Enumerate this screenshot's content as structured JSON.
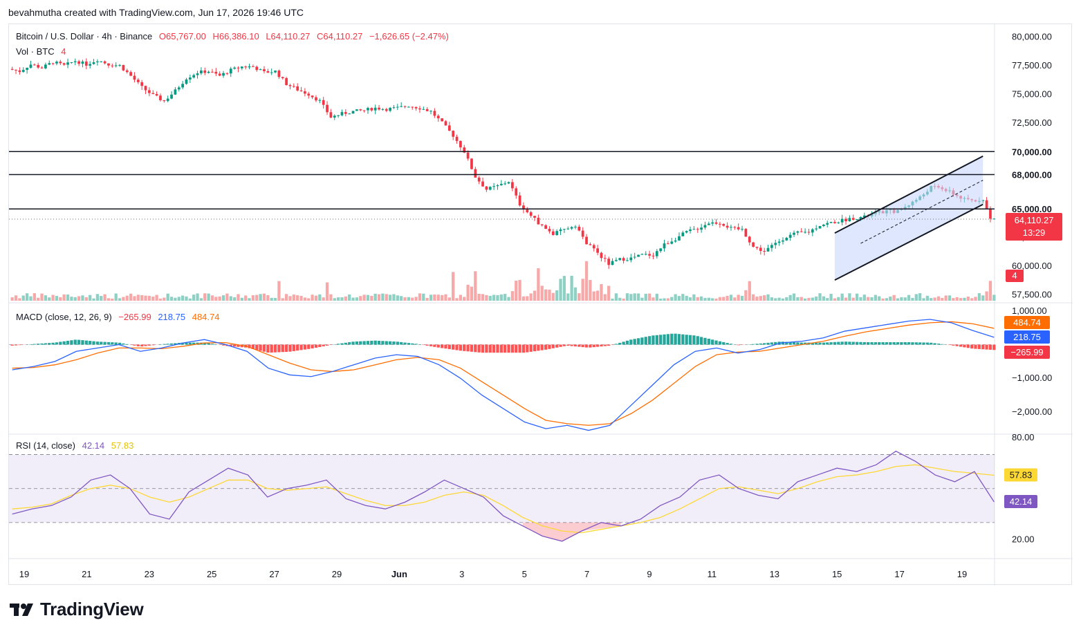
{
  "credit": "bevahmutha created with TradingView.com, Jun 17, 2026 19:46 UTC",
  "brand": "TradingView",
  "legend": {
    "symbol": "Bitcoin / U.S. Dollar · 4h · Binance",
    "open": "O65,767.00",
    "high": "H66,386.10",
    "low": "L64,110.27",
    "close": "C64,110.27",
    "change": "−1,626.65 (−2.47%)",
    "volume_label": "Vol · BTC",
    "volume_value": "4",
    "macd_label": "MACD (close, 12, 26, 9)",
    "macd_hist": "−265.99",
    "macd_line": "218.75",
    "macd_signal": "484.74",
    "rsi_label": "RSI (14, close)",
    "rsi_value": "42.14",
    "rsi_ma": "57.83"
  },
  "price_badge": {
    "price": "64,110.27",
    "countdown": "13:29"
  },
  "volume_badge": "4",
  "colors": {
    "up": "#089981",
    "down": "#f23645",
    "up_vol": "#8fd0c4",
    "down_vol": "#f7a9a9",
    "macd": "#2962ff",
    "signal": "#ff6d00",
    "rsi": "#7e57c2",
    "rsi_ma": "#fdd835",
    "channel_fill": "#c8d7fb",
    "level": "#131722"
  },
  "chart_data": [
    {
      "type": "candlestick",
      "title": "Bitcoin / U.S. Dollar · 4h · Binance",
      "y_ticks": [
        "80,000.00",
        "77,500.00",
        "75,000.00",
        "72,500.00",
        "70,000.00",
        "68,000.00",
        "65,000.00",
        "62,500.00",
        "60,000.00",
        "57,500.00"
      ],
      "ylim": [
        57000,
        80500
      ],
      "x_ticks": [
        "19",
        "21",
        "23",
        "25",
        "27",
        "29",
        "Jun",
        "3",
        "5",
        "7",
        "9",
        "11",
        "13",
        "15",
        "17",
        "19"
      ],
      "horizontal_levels": [
        70000,
        68000,
        65000
      ],
      "level_labels": [
        "70,000.00",
        "68,000.00",
        "65,000.00"
      ],
      "close_path": [
        [
          0,
          77200
        ],
        [
          3,
          77000
        ],
        [
          6,
          77600
        ],
        [
          9,
          77300
        ],
        [
          12,
          77800
        ],
        [
          15,
          77500
        ],
        [
          18,
          77900
        ],
        [
          21,
          77600
        ],
        [
          24,
          78000
        ],
        [
          27,
          77600
        ],
        [
          30,
          77500
        ],
        [
          33,
          76600
        ],
        [
          36,
          75600
        ],
        [
          39,
          74900
        ],
        [
          42,
          74400
        ],
        [
          45,
          75300
        ],
        [
          48,
          76400
        ],
        [
          51,
          76900
        ],
        [
          54,
          77000
        ],
        [
          57,
          76600
        ],
        [
          60,
          77100
        ],
        [
          63,
          77400
        ],
        [
          66,
          77400
        ],
        [
          69,
          76900
        ],
        [
          72,
          77000
        ],
        [
          75,
          75900
        ],
        [
          78,
          75400
        ],
        [
          81,
          75000
        ],
        [
          84,
          74400
        ],
        [
          87,
          73000
        ],
        [
          90,
          73300
        ],
        [
          93,
          73500
        ],
        [
          96,
          73600
        ],
        [
          99,
          73800
        ],
        [
          102,
          73700
        ],
        [
          105,
          73800
        ],
        [
          108,
          74000
        ],
        [
          111,
          73800
        ],
        [
          114,
          73500
        ],
        [
          117,
          72500
        ],
        [
          120,
          71400
        ],
        [
          123,
          70000
        ],
        [
          126,
          67800
        ],
        [
          129,
          66700
        ],
        [
          132,
          67000
        ],
        [
          135,
          67400
        ],
        [
          138,
          65400
        ],
        [
          141,
          64400
        ],
        [
          144,
          63500
        ],
        [
          147,
          62800
        ],
        [
          150,
          63200
        ],
        [
          153,
          63600
        ],
        [
          156,
          62000
        ],
        [
          159,
          61200
        ],
        [
          162,
          60200
        ],
        [
          165,
          60600
        ],
        [
          168,
          60700
        ],
        [
          171,
          61000
        ],
        [
          174,
          61000
        ],
        [
          177,
          61900
        ],
        [
          180,
          62400
        ],
        [
          183,
          63000
        ],
        [
          186,
          63300
        ],
        [
          189,
          63800
        ],
        [
          192,
          63800
        ],
        [
          195,
          63300
        ],
        [
          198,
          63200
        ],
        [
          201,
          61700
        ],
        [
          204,
          61300
        ],
        [
          207,
          62000
        ],
        [
          210,
          62600
        ],
        [
          213,
          62900
        ],
        [
          216,
          63000
        ],
        [
          219,
          63600
        ],
        [
          222,
          63800
        ],
        [
          225,
          64000
        ],
        [
          228,
          64200
        ],
        [
          231,
          64300
        ],
        [
          234,
          64600
        ],
        [
          237,
          64800
        ],
        [
          240,
          64800
        ],
        [
          243,
          65400
        ],
        [
          246,
          66000
        ],
        [
          249,
          66900
        ],
        [
          252,
          66800
        ],
        [
          255,
          66300
        ],
        [
          258,
          65800
        ],
        [
          261,
          65700
        ],
        [
          263,
          65900
        ],
        [
          265,
          64110
        ]
      ],
      "channel": {
        "upper": [
          [
            222,
            62900
          ],
          [
            262,
            69600
          ]
        ],
        "lower": [
          [
            222,
            58800
          ],
          [
            262,
            65400
          ]
        ],
        "mid": [
          [
            229,
            62000
          ],
          [
            262,
            67500
          ]
        ]
      },
      "last_price": 64110.27,
      "timer": "13:29"
    },
    {
      "type": "bar",
      "title": "Vol · BTC",
      "last_value": 4
    },
    {
      "type": "line",
      "title": "MACD (close, 12, 26, 9)",
      "y_ticks": [
        "1,000.00",
        "−1,000.00",
        "−2,000.00"
      ],
      "ylim": [
        -2600,
        1100
      ],
      "series": [
        {
          "name": "MACD",
          "values": [
            -750,
            -650,
            -500,
            -200,
            -100,
            0,
            -200,
            -100,
            50,
            150,
            0,
            -200,
            -700,
            -900,
            -950,
            -800,
            -600,
            -400,
            -300,
            -350,
            -600,
            -1000,
            -1500,
            -1900,
            -2300,
            -2500,
            -2400,
            -2550,
            -2400,
            -1800,
            -1200,
            -600,
            -200,
            -100,
            -250,
            -150,
            50,
            100,
            200,
            400,
            500,
            600,
            700,
            750,
            650,
            420,
            218.75
          ]
        },
        {
          "name": "Signal",
          "values": [
            -700,
            -680,
            -600,
            -450,
            -250,
            -100,
            -100,
            -120,
            -50,
            50,
            60,
            -50,
            -300,
            -550,
            -750,
            -800,
            -750,
            -600,
            -450,
            -380,
            -450,
            -700,
            -1100,
            -1500,
            -1900,
            -2250,
            -2350,
            -2400,
            -2350,
            -2050,
            -1650,
            -1150,
            -650,
            -300,
            -220,
            -200,
            -100,
            0,
            100,
            250,
            380,
            480,
            580,
            650,
            680,
            620,
            484.74
          ]
        }
      ],
      "histogram_last": -265.99
    },
    {
      "type": "line",
      "title": "RSI (14, close)",
      "y_ticks": [
        "80.00",
        "20.00"
      ],
      "ylim": [
        10,
        80
      ],
      "bands": [
        70,
        50,
        30
      ],
      "series": [
        {
          "name": "RSI",
          "values": [
            35,
            38,
            40,
            45,
            55,
            58,
            50,
            35,
            32,
            48,
            55,
            62,
            58,
            45,
            50,
            52,
            55,
            44,
            40,
            38,
            42,
            48,
            55,
            50,
            45,
            34,
            28,
            22,
            19,
            25,
            30,
            28,
            32,
            40,
            45,
            55,
            58,
            50,
            46,
            44,
            54,
            58,
            62,
            60,
            64,
            72,
            66,
            58,
            54,
            60,
            42.14
          ]
        },
        {
          "name": "RSI MA",
          "values": [
            38,
            39,
            41,
            46,
            50,
            52,
            50,
            45,
            42,
            45,
            50,
            55,
            55,
            50,
            49,
            50,
            51,
            47,
            43,
            40,
            40,
            42,
            46,
            48,
            46,
            40,
            33,
            28,
            25,
            24,
            26,
            28,
            30,
            33,
            38,
            44,
            50,
            51,
            49,
            47,
            50,
            54,
            57,
            58,
            60,
            63,
            64,
            62,
            60,
            59,
            57.83
          ]
        }
      ]
    }
  ]
}
